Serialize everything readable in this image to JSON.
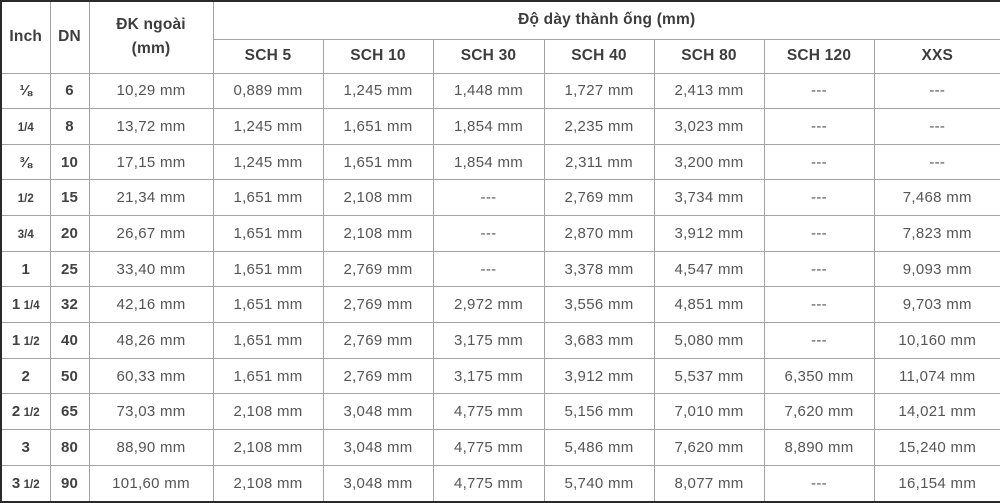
{
  "table": {
    "title_semantic": "pipe-wall-thickness-schedule",
    "colors": {
      "outer_border": "#2a2a2a",
      "inner_grid": "#a3a3a3",
      "header_text": "#3d3d3d",
      "data_text": "#565656"
    },
    "header": {
      "inch": "Inch",
      "dn": "DN",
      "od_line1": "ĐK ngoài",
      "od_line2": "(mm)",
      "group": "Độ dày thành ống (mm)",
      "sch_columns": [
        "SCH 5",
        "SCH 10",
        "SCH 30",
        "SCH 40",
        "SCH 80",
        "SCH 120",
        "XXS"
      ]
    },
    "empty_marker": "---",
    "rows": [
      {
        "inch_whole": "⅛",
        "inch_frac": "",
        "dn": "6",
        "od": "10,29 mm",
        "sch": [
          "0,889 mm",
          "1,245 mm",
          "1,448 mm",
          "1,727 mm",
          "2,413 mm",
          "---",
          "---"
        ]
      },
      {
        "inch_whole": "",
        "inch_frac": "1/4",
        "dn": "8",
        "od": "13,72 mm",
        "sch": [
          "1,245 mm",
          "1,651 mm",
          "1,854 mm",
          "2,235 mm",
          "3,023 mm",
          "---",
          "---"
        ]
      },
      {
        "inch_whole": "⅜",
        "inch_frac": "",
        "dn": "10",
        "od": "17,15 mm",
        "sch": [
          "1,245 mm",
          "1,651 mm",
          "1,854 mm",
          "2,311 mm",
          "3,200 mm",
          "---",
          "---"
        ]
      },
      {
        "inch_whole": "",
        "inch_frac": "1/2",
        "dn": "15",
        "od": "21,34 mm",
        "sch": [
          "1,651 mm",
          "2,108 mm",
          "---",
          "2,769 mm",
          "3,734 mm",
          "---",
          "7,468 mm"
        ]
      },
      {
        "inch_whole": "",
        "inch_frac": "3/4",
        "dn": "20",
        "od": "26,67 mm",
        "sch": [
          "1,651 mm",
          "2,108 mm",
          "---",
          "2,870 mm",
          "3,912 mm",
          "---",
          "7,823 mm"
        ]
      },
      {
        "inch_whole": "1",
        "inch_frac": "",
        "dn": "25",
        "od": "33,40 mm",
        "sch": [
          "1,651 mm",
          "2,769 mm",
          "---",
          "3,378 mm",
          "4,547 mm",
          "---",
          "9,093 mm"
        ]
      },
      {
        "inch_whole": "1",
        "inch_frac": "1/4",
        "dn": "32",
        "od": "42,16 mm",
        "sch": [
          "1,651 mm",
          "2,769 mm",
          "2,972 mm",
          "3,556 mm",
          "4,851 mm",
          "---",
          "9,703 mm"
        ]
      },
      {
        "inch_whole": "1",
        "inch_frac": "1/2",
        "dn": "40",
        "od": "48,26 mm",
        "sch": [
          "1,651 mm",
          "2,769 mm",
          "3,175 mm",
          "3,683 mm",
          "5,080 mm",
          "---",
          "10,160 mm"
        ]
      },
      {
        "inch_whole": "2",
        "inch_frac": "",
        "dn": "50",
        "od": "60,33 mm",
        "sch": [
          "1,651 mm",
          "2,769 mm",
          "3,175 mm",
          "3,912 mm",
          "5,537 mm",
          "6,350 mm",
          "11,074 mm"
        ]
      },
      {
        "inch_whole": "2",
        "inch_frac": "1/2",
        "dn": "65",
        "od": "73,03 mm",
        "sch": [
          "2,108 mm",
          "3,048 mm",
          "4,775 mm",
          "5,156 mm",
          "7,010 mm",
          "7,620 mm",
          "14,021 mm"
        ]
      },
      {
        "inch_whole": "3",
        "inch_frac": "",
        "dn": "80",
        "od": "88,90 mm",
        "sch": [
          "2,108 mm",
          "3,048 mm",
          "4,775 mm",
          "5,486 mm",
          "7,620 mm",
          "8,890 mm",
          "15,240 mm"
        ]
      },
      {
        "inch_whole": "3",
        "inch_frac": "1/2",
        "dn": "90",
        "od": "101,60 mm",
        "sch": [
          "2,108 mm",
          "3,048 mm",
          "4,775 mm",
          "5,740 mm",
          "8,077 mm",
          "---",
          "16,154 mm"
        ]
      }
    ]
  }
}
